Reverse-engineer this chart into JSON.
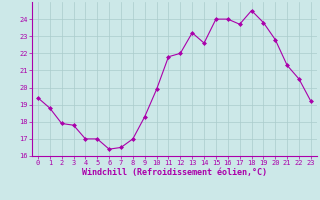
{
  "x": [
    0,
    1,
    2,
    3,
    4,
    5,
    6,
    7,
    8,
    9,
    10,
    11,
    12,
    13,
    14,
    15,
    16,
    17,
    18,
    19,
    20,
    21,
    22,
    23
  ],
  "y": [
    19.4,
    18.8,
    17.9,
    17.8,
    17.0,
    17.0,
    16.4,
    16.5,
    17.0,
    18.3,
    19.9,
    21.8,
    22.0,
    23.2,
    22.6,
    24.0,
    24.0,
    23.7,
    24.5,
    23.8,
    22.8,
    21.3,
    20.5,
    19.2
  ],
  "line_color": "#aa00aa",
  "marker": "D",
  "markersize": 2.0,
  "bg_color": "#cce8e8",
  "grid_color": "#aacccc",
  "axis_color": "#aa00aa",
  "xlabel": "Windchill (Refroidissement éolien,°C)",
  "xlim": [
    -0.5,
    23.5
  ],
  "ylim": [
    16,
    25
  ],
  "yticks": [
    16,
    17,
    18,
    19,
    20,
    21,
    22,
    23,
    24
  ],
  "xticks": [
    0,
    1,
    2,
    3,
    4,
    5,
    6,
    7,
    8,
    9,
    10,
    11,
    12,
    13,
    14,
    15,
    16,
    17,
    18,
    19,
    20,
    21,
    22,
    23
  ],
  "tick_fontsize": 5.0,
  "label_fontsize": 6.0,
  "spine_color": "#aa00aa",
  "linewidth": 0.8
}
